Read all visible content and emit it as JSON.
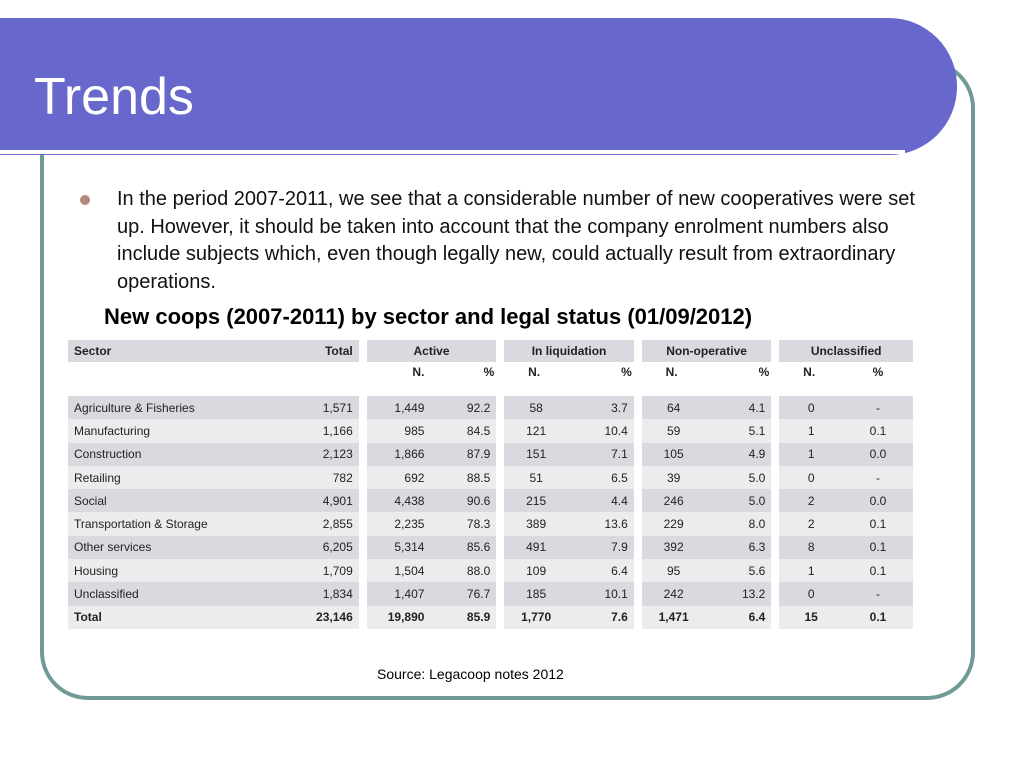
{
  "slide": {
    "title": "Trends",
    "bullet": "In the period 2007-2011, we see that a considerable number of new cooperatives were set up. However, it should be taken into account that the company enrolment numbers also include subjects which, even though legally new, could actually result from extraordinary operations.",
    "table_title": "New coops (2007-2011) by sector and legal status (01/09/2012)",
    "source": "Source: Legacoop notes 2012"
  },
  "table": {
    "headers": {
      "sector": "Sector",
      "total": "Total",
      "active": "Active",
      "liquidation": "In liquidation",
      "nonoperative": "Non-operative",
      "unclassified": "Unclassified",
      "n": "N.",
      "pct": "%"
    },
    "rows": [
      [
        "Agriculture & Fisheries",
        "1,571",
        "1,449",
        "92.2",
        "58",
        "3.7",
        "64",
        "4.1",
        "0",
        "-"
      ],
      [
        "Manufacturing",
        "1,166",
        "985",
        "84.5",
        "121",
        "10.4",
        "59",
        "5.1",
        "1",
        "0.1"
      ],
      [
        "Construction",
        "2,123",
        "1,866",
        "87.9",
        "151",
        "7.1",
        "105",
        "4.9",
        "1",
        "0.0"
      ],
      [
        "Retailing",
        "782",
        "692",
        "88.5",
        "51",
        "6.5",
        "39",
        "5.0",
        "0",
        "-"
      ],
      [
        "Social",
        "4,901",
        "4,438",
        "90.6",
        "215",
        "4.4",
        "246",
        "5.0",
        "2",
        "0.0"
      ],
      [
        "Transportation & Storage",
        "2,855",
        "2,235",
        "78.3",
        "389",
        "13.6",
        "229",
        "8.0",
        "2",
        "0.1"
      ],
      [
        "Other services",
        "6,205",
        "5,314",
        "85.6",
        "491",
        "7.9",
        "392",
        "6.3",
        "8",
        "0.1"
      ],
      [
        "Housing",
        "1,709",
        "1,504",
        "88.0",
        "109",
        "6.4",
        "95",
        "5.6",
        "1",
        "0.1"
      ],
      [
        "Unclassified",
        "1,834",
        "1,407",
        "76.7",
        "185",
        "10.1",
        "242",
        "13.2",
        "0",
        "-"
      ],
      [
        "Total",
        "23,146",
        "19,890",
        "85.9",
        "1,770",
        "7.6",
        "1,471",
        "6.4",
        "15",
        "0.1"
      ]
    ]
  },
  "colors": {
    "title_bar": "#6767cc",
    "frame_border": "#6f9a98",
    "bullet": "#b58a7e",
    "row_dark": "#d8dae0",
    "row_light": "#ececee"
  }
}
